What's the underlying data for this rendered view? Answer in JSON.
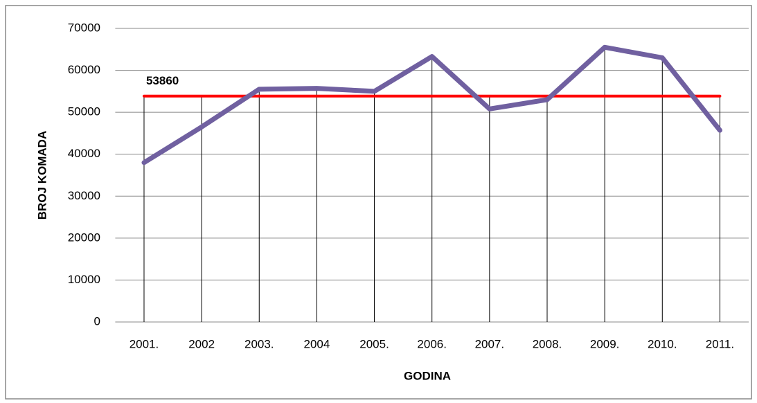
{
  "chart_data": {
    "type": "line",
    "xlabel": "GODINA",
    "ylabel": "BROJ KOMADA",
    "categories": [
      "2001.",
      "2002",
      "2003.",
      "2004",
      "2005.",
      "2006.",
      "2007.",
      "2008.",
      "2009.",
      "2010.",
      "2011."
    ],
    "series": [
      {
        "color": "#7060a0",
        "values": [
          38000,
          46500,
          55500,
          55700,
          55000,
          63300,
          50800,
          53000,
          65500,
          63000,
          45700
        ]
      },
      {
        "color": "#ff0000",
        "values": [
          53860,
          53860,
          53860,
          53860,
          53860,
          53860,
          53860,
          53860,
          53860,
          53860,
          53860
        ]
      }
    ],
    "ylim": [
      0,
      70000
    ],
    "yticks": [
      0,
      10000,
      20000,
      30000,
      40000,
      50000,
      60000,
      70000
    ],
    "grid": true
  }
}
